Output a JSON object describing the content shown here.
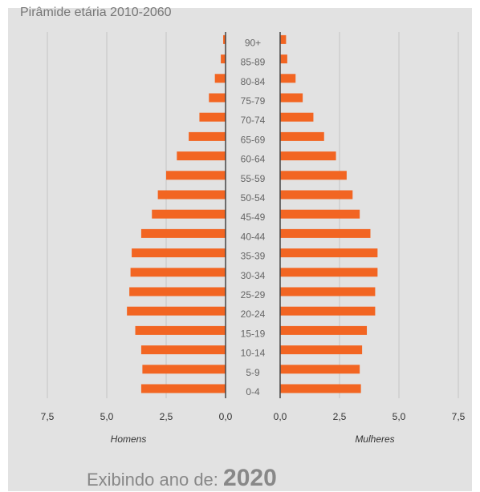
{
  "header": {
    "title": "Pirâmide etária 2010-2060"
  },
  "chart_data": {
    "type": "bar",
    "orientation": "horizontal-pyramid",
    "title": "Pirâmide etária 2010-2060",
    "categories": [
      "0-4",
      "5-9",
      "10-14",
      "15-19",
      "20-24",
      "25-29",
      "30-34",
      "35-39",
      "40-44",
      "45-49",
      "50-54",
      "55-59",
      "60-64",
      "65-69",
      "70-74",
      "75-79",
      "80-84",
      "85-89",
      "90+"
    ],
    "series": [
      {
        "name": "Homens",
        "values": [
          3.55,
          3.5,
          3.55,
          3.8,
          4.15,
          4.05,
          4.0,
          3.95,
          3.55,
          3.1,
          2.85,
          2.5,
          2.05,
          1.55,
          1.1,
          0.7,
          0.45,
          0.2,
          0.1
        ]
      },
      {
        "name": "Mulheres",
        "values": [
          3.4,
          3.35,
          3.45,
          3.65,
          4.0,
          4.0,
          4.1,
          4.1,
          3.8,
          3.35,
          3.05,
          2.8,
          2.35,
          1.85,
          1.4,
          0.95,
          0.65,
          0.3,
          0.25
        ]
      }
    ],
    "left_ticks": [
      "7,5",
      "5,0",
      "2,5",
      "0,0"
    ],
    "right_ticks": [
      "0,0",
      "2,5",
      "5,0",
      "7,5"
    ],
    "xlim": [
      0,
      7.5
    ],
    "grid": true,
    "colors": {
      "bar": "#f26522",
      "grid": "#c4c4c4",
      "axis": "#444444"
    },
    "left_label": "Homens",
    "right_label": "Mulheres"
  },
  "footer": {
    "label": "Exibindo ano de:",
    "year": "2020"
  }
}
